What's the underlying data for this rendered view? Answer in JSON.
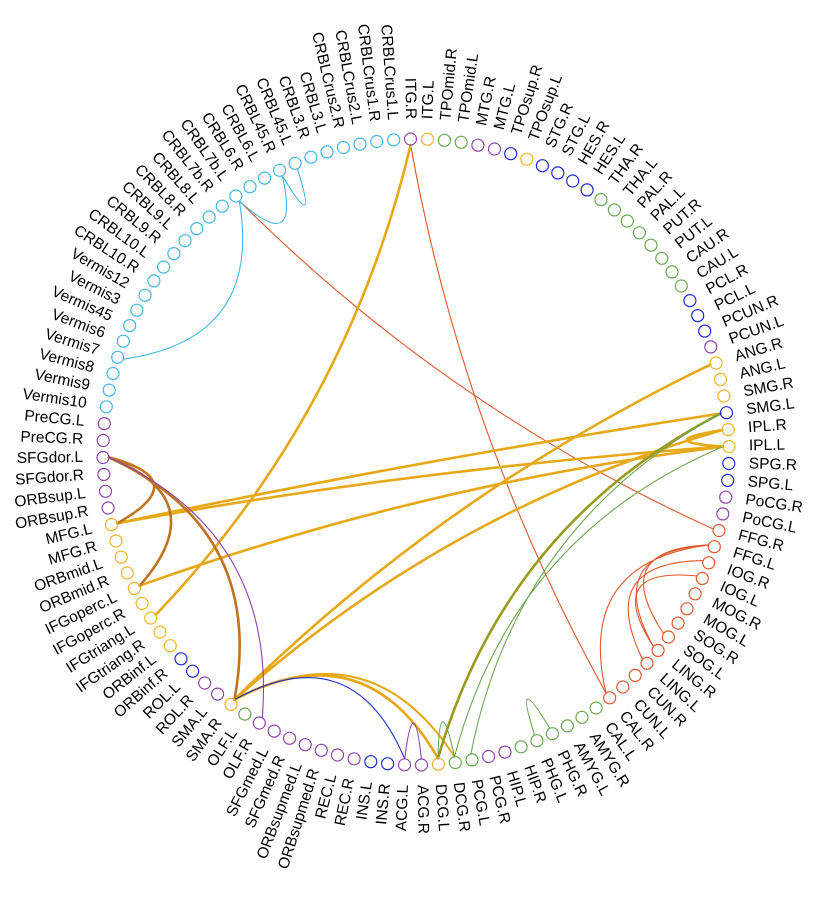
{
  "colors": {
    "purple": "#8E44AD",
    "orange": "#F0B429",
    "green": "#6AA84F",
    "blue": "#1F2BD6",
    "cyan": "#41B6E6",
    "red": "#E2572B",
    "gold": "#E6A817",
    "brown": "#C0741E",
    "olive": "#9A9A1E"
  },
  "nodes": [
    {
      "label": "ITG.R",
      "color": "purple"
    },
    {
      "label": "ITG.L",
      "color": "orange"
    },
    {
      "label": "TPOmid.R",
      "color": "green"
    },
    {
      "label": "TPOmid.L",
      "color": "green"
    },
    {
      "label": "MTG.R",
      "color": "purple"
    },
    {
      "label": "MTG.L",
      "color": "purple"
    },
    {
      "label": "TPOsup.R",
      "color": "blue"
    },
    {
      "label": "TPOsup.L",
      "color": "orange"
    },
    {
      "label": "STG.R",
      "color": "blue"
    },
    {
      "label": "STG.L",
      "color": "blue"
    },
    {
      "label": "HES.R",
      "color": "blue"
    },
    {
      "label": "HES.L",
      "color": "blue"
    },
    {
      "label": "THA.R",
      "color": "green"
    },
    {
      "label": "THA.L",
      "color": "green"
    },
    {
      "label": "PAL.R",
      "color": "green"
    },
    {
      "label": "PAL.L",
      "color": "green"
    },
    {
      "label": "PUT.R",
      "color": "green"
    },
    {
      "label": "PUT.L",
      "color": "green"
    },
    {
      "label": "CAU.R",
      "color": "green"
    },
    {
      "label": "CAU.L",
      "color": "green"
    },
    {
      "label": "PCL.R",
      "color": "blue"
    },
    {
      "label": "PCL.L",
      "color": "blue"
    },
    {
      "label": "PCUN.R",
      "color": "blue"
    },
    {
      "label": "PCUN.L",
      "color": "purple"
    },
    {
      "label": "ANG.R",
      "color": "orange"
    },
    {
      "label": "ANG.L",
      "color": "orange"
    },
    {
      "label": "SMG.R",
      "color": "orange"
    },
    {
      "label": "SMG.L",
      "color": "blue"
    },
    {
      "label": "IPL.R",
      "color": "orange"
    },
    {
      "label": "IPL.L",
      "color": "orange"
    },
    {
      "label": "SPG.R",
      "color": "blue"
    },
    {
      "label": "SPG.L",
      "color": "blue"
    },
    {
      "label": "PoCG.R",
      "color": "purple"
    },
    {
      "label": "PoCG.L",
      "color": "purple"
    },
    {
      "label": "FFG.R",
      "color": "red"
    },
    {
      "label": "FFG.L",
      "color": "red"
    },
    {
      "label": "IOG.R",
      "color": "red"
    },
    {
      "label": "IOG.L",
      "color": "red"
    },
    {
      "label": "MOG.R",
      "color": "red"
    },
    {
      "label": "MOG.L",
      "color": "red"
    },
    {
      "label": "SOG.R",
      "color": "red"
    },
    {
      "label": "SOG.L",
      "color": "red"
    },
    {
      "label": "LING.R",
      "color": "red"
    },
    {
      "label": "LING.L",
      "color": "red"
    },
    {
      "label": "CUN.R",
      "color": "red"
    },
    {
      "label": "CUN.L",
      "color": "red"
    },
    {
      "label": "CAL.R",
      "color": "red"
    },
    {
      "label": "CAL.L",
      "color": "green"
    },
    {
      "label": "AMYG.R",
      "color": "green"
    },
    {
      "label": "AMYG.L",
      "color": "green"
    },
    {
      "label": "PHG.R",
      "color": "green"
    },
    {
      "label": "PHG.L",
      "color": "green"
    },
    {
      "label": "HIP.R",
      "color": "green"
    },
    {
      "label": "HIP.L",
      "color": "purple"
    },
    {
      "label": "PCG.R",
      "color": "purple"
    },
    {
      "label": "PCG.L",
      "color": "green"
    },
    {
      "label": "DCG.R",
      "color": "green"
    },
    {
      "label": "DCG.L",
      "color": "orange"
    },
    {
      "label": "ACG.R",
      "color": "purple"
    },
    {
      "label": "ACG.L",
      "color": "purple"
    },
    {
      "label": "INS.R",
      "color": "blue"
    },
    {
      "label": "INS.L",
      "color": "blue"
    },
    {
      "label": "REC.R",
      "color": "purple"
    },
    {
      "label": "REC.L",
      "color": "purple"
    },
    {
      "label": "ORBsupmed.R",
      "color": "purple"
    },
    {
      "label": "ORBsupmed.L",
      "color": "purple"
    },
    {
      "label": "SFGmed.R",
      "color": "purple"
    },
    {
      "label": "SFGmed.L",
      "color": "purple"
    },
    {
      "label": "OLF.R",
      "color": "purple"
    },
    {
      "label": "OLF.L",
      "color": "green"
    },
    {
      "label": "SMA.R",
      "color": "orange"
    },
    {
      "label": "SMA.L",
      "color": "purple"
    },
    {
      "label": "ROL.R",
      "color": "purple"
    },
    {
      "label": "ROL.L",
      "color": "blue"
    },
    {
      "label": "ORBinf.R",
      "color": "blue"
    },
    {
      "label": "ORBinf.L",
      "color": "orange"
    },
    {
      "label": "IFGtriang.R",
      "color": "orange"
    },
    {
      "label": "IFGtriang.L",
      "color": "orange"
    },
    {
      "label": "IFGoperc.R",
      "color": "orange"
    },
    {
      "label": "IFGoperc.L",
      "color": "orange"
    },
    {
      "label": "ORBmid.R",
      "color": "orange"
    },
    {
      "label": "ORBmid.L",
      "color": "orange"
    },
    {
      "label": "MFG.R",
      "color": "orange"
    },
    {
      "label": "MFG.L",
      "color": "orange"
    },
    {
      "label": "ORBsup.R",
      "color": "purple"
    },
    {
      "label": "ORBsup.L",
      "color": "purple"
    },
    {
      "label": "SFGdor.R",
      "color": "purple"
    },
    {
      "label": "SFGdor.L",
      "color": "purple"
    },
    {
      "label": "PreCG.R",
      "color": "purple"
    },
    {
      "label": "PreCG.L",
      "color": "purple"
    },
    {
      "label": "Vermis10",
      "color": "cyan"
    },
    {
      "label": "Vermis9",
      "color": "cyan"
    },
    {
      "label": "Vermis8",
      "color": "cyan"
    },
    {
      "label": "Vermis7",
      "color": "cyan"
    },
    {
      "label": "Vermis6",
      "color": "cyan"
    },
    {
      "label": "Vermis45",
      "color": "cyan"
    },
    {
      "label": "Vermis3",
      "color": "cyan"
    },
    {
      "label": "Vermis12",
      "color": "cyan"
    },
    {
      "label": "CRBL10.R",
      "color": "cyan"
    },
    {
      "label": "CRBL10.L",
      "color": "cyan"
    },
    {
      "label": "CRBL9.R",
      "color": "cyan"
    },
    {
      "label": "CRBL9.L",
      "color": "cyan"
    },
    {
      "label": "CRBL8.R",
      "color": "cyan"
    },
    {
      "label": "CRBL8.L",
      "color": "cyan"
    },
    {
      "label": "CRBL7b.R",
      "color": "cyan"
    },
    {
      "label": "CRBL7b.L",
      "color": "cyan"
    },
    {
      "label": "CRBL6.R",
      "color": "cyan"
    },
    {
      "label": "CRBL6.L",
      "color": "cyan"
    },
    {
      "label": "CRBL45.R",
      "color": "cyan"
    },
    {
      "label": "CRBL45.L",
      "color": "cyan"
    },
    {
      "label": "CRBL3.R",
      "color": "cyan"
    },
    {
      "label": "CRBL3.L",
      "color": "cyan"
    },
    {
      "label": "CRBLCrus2.R",
      "color": "cyan"
    },
    {
      "label": "CRBLCrus2.L",
      "color": "cyan"
    },
    {
      "label": "CRBLCrus1.R",
      "color": "cyan"
    },
    {
      "label": "CRBLCrus1.L",
      "color": "cyan"
    }
  ],
  "links": [
    {
      "source": "ITG.R",
      "target": "CAL.R",
      "color": "red",
      "weight": 1
    },
    {
      "source": "CRBL7b.L",
      "target": "FFG.R",
      "color": "red",
      "weight": 1
    },
    {
      "source": "FFG.L",
      "target": "SOG.L",
      "color": "red",
      "weight": 1
    },
    {
      "source": "FFG.L",
      "target": "LING.R",
      "color": "red",
      "weight": 1
    },
    {
      "source": "FFG.L",
      "target": "CAL.R",
      "color": "red",
      "weight": 1
    },
    {
      "source": "IOG.R",
      "target": "LING.L",
      "color": "red",
      "weight": 1
    },
    {
      "source": "IOG.L",
      "target": "LING.R",
      "color": "red",
      "weight": 1
    },
    {
      "source": "ITG.R",
      "target": "IFGtriang.L",
      "color": "gold",
      "weight": 2
    },
    {
      "source": "ANG.R",
      "target": "SMA.R",
      "color": "gold",
      "weight": 2
    },
    {
      "source": "SMG.L",
      "target": "MFG.L",
      "color": "gold",
      "weight": 2
    },
    {
      "source": "IPL.L",
      "target": "MFG.L",
      "color": "gold",
      "weight": 2
    },
    {
      "source": "IPL.L",
      "target": "IFGoperc.L",
      "color": "gold",
      "weight": 2
    },
    {
      "source": "SMA.R",
      "target": "DCG.L",
      "color": "gold",
      "weight": 2
    },
    {
      "source": "SMA.R",
      "target": "DCG.R",
      "color": "gold",
      "weight": 1.5
    },
    {
      "source": "SMA.R",
      "target": "IPL.R",
      "color": "gold",
      "weight": 2
    },
    {
      "source": "IPL.R",
      "target": "IPL.L",
      "color": "gold",
      "weight": 2
    },
    {
      "source": "SFGdor.L",
      "target": "MFG.L",
      "color": "brown",
      "weight": 2
    },
    {
      "source": "SFGdor.L",
      "target": "IFGoperc.L",
      "color": "brown",
      "weight": 2
    },
    {
      "source": "SFGdor.L",
      "target": "SMA.R",
      "color": "brown",
      "weight": 2
    },
    {
      "source": "SFGdor.L",
      "target": "OLF.R",
      "color": "purple",
      "weight": 1
    },
    {
      "source": "SMA.R",
      "target": "ACG.L",
      "color": "blue",
      "weight": 1
    },
    {
      "source": "SMG.L",
      "target": "DCG.L",
      "color": "olive",
      "weight": 2
    },
    {
      "source": "IPL.L",
      "target": "DCG.R",
      "color": "green",
      "weight": 1
    },
    {
      "source": "SMG.L",
      "target": "PCG.L",
      "color": "green",
      "weight": 1
    },
    {
      "source": "DCG.L",
      "target": "DCG.R",
      "color": "green",
      "weight": 1
    },
    {
      "source": "PHG.R",
      "target": "PHG.L",
      "color": "green",
      "weight": 1
    },
    {
      "source": "ACG.R",
      "target": "ACG.L",
      "color": "purple",
      "weight": 1
    },
    {
      "source": "CRBL7b.L",
      "target": "Vermis7",
      "color": "cyan",
      "weight": 1
    },
    {
      "source": "CRBL7b.L",
      "target": "CRBL45.R",
      "color": "cyan",
      "weight": 1
    },
    {
      "source": "CRBL45.R",
      "target": "CRBL45.L",
      "color": "cyan",
      "weight": 1
    }
  ]
}
